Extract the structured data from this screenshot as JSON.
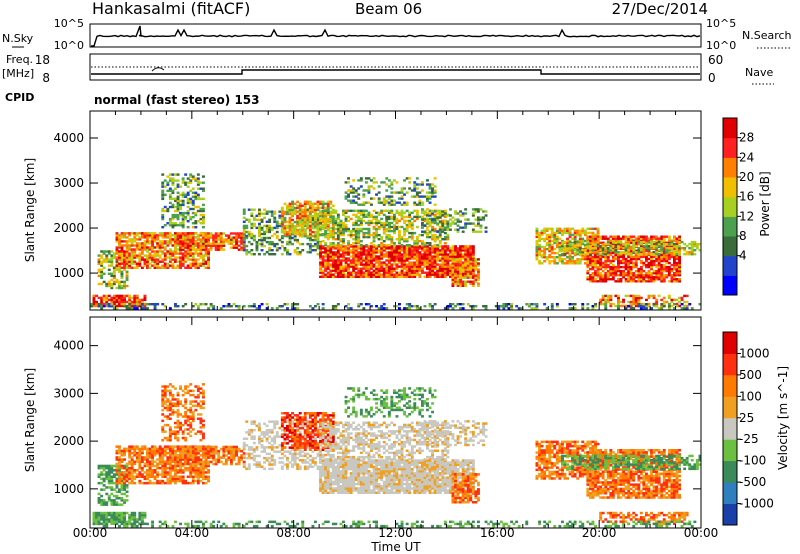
{
  "header": {
    "station": "Hankasalmi (fitACF)",
    "beam": "Beam 06",
    "date": "27/Dec/2014"
  },
  "top_panel": {
    "left_label": "N.Sky",
    "right_label": "N.Search",
    "left_ticks": [
      "10^5",
      "10^0"
    ],
    "right_ticks": [
      "10^5",
      "10^0"
    ]
  },
  "freq_panel": {
    "label_line1": "Freq.",
    "label_line2": "[MHz]",
    "left_ticks": [
      "18",
      "8"
    ],
    "right_ticks": [
      "60",
      "0"
    ],
    "right_label": "Nave"
  },
  "cpid": {
    "label": "CPID",
    "mode": "normal (fast stereo) 153"
  },
  "chart_data": [
    {
      "type": "heatmap",
      "name": "power",
      "ylabel": "Slant Range [km]",
      "xlabel": "Time UT",
      "ylim": [
        180,
        4600
      ],
      "xlim": [
        0,
        24
      ],
      "y_ticks": [
        "4000",
        "3000",
        "2000",
        "1000"
      ],
      "x_ticks": [
        "00:00",
        "04:00",
        "08:00",
        "12:00",
        "16:00",
        "20:00",
        "00:00"
      ],
      "colorbar": {
        "label": "Power [dB]",
        "ticks": [
          "28",
          "24",
          "20",
          "16",
          "12",
          "8",
          "4"
        ],
        "colors": [
          "#0000ff",
          "#2244cc",
          "#3a6b3a",
          "#4da04d",
          "#a8d020",
          "#f0c000",
          "#ff8000",
          "#ff2020",
          "#e00000"
        ]
      }
    },
    {
      "type": "heatmap",
      "name": "velocity",
      "ylabel": "Slant Range [km]",
      "xlabel": "Time UT",
      "ylim": [
        180,
        4600
      ],
      "xlim": [
        0,
        24
      ],
      "y_ticks": [
        "4000",
        "3000",
        "2000",
        "1000"
      ],
      "x_ticks": [
        "00:00",
        "04:00",
        "08:00",
        "12:00",
        "16:00",
        "20:00",
        "00:00"
      ],
      "colorbar": {
        "label": "Velocity [m s^-1]",
        "ticks": [
          "1000",
          "500",
          "100",
          "25",
          "-25",
          "-100",
          "-500",
          "-1000"
        ],
        "colors": [
          "#1a3fa8",
          "#2f7fbf",
          "#3a8a5a",
          "#6cc040",
          "#c8c8c0",
          "#f0a020",
          "#ff7a00",
          "#ff3010",
          "#e00000"
        ]
      }
    }
  ]
}
